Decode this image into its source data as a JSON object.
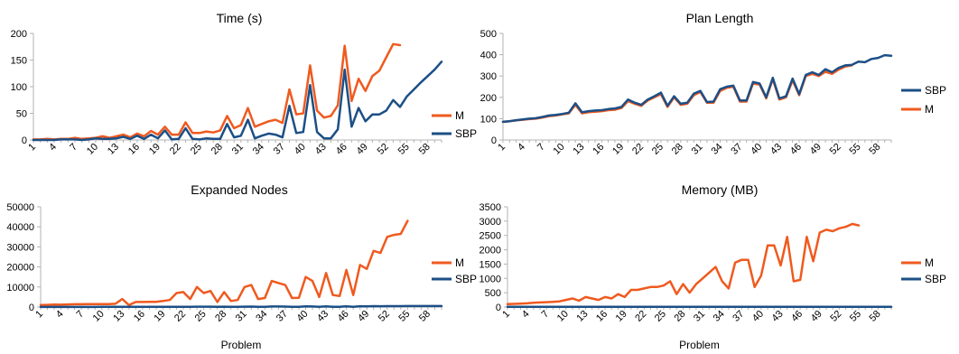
{
  "x_tick_labels": [
    "1",
    "4",
    "7",
    "10",
    "13",
    "16",
    "19",
    "22",
    "25",
    "28",
    "31",
    "34",
    "37",
    "40",
    "43",
    "46",
    "49",
    "52",
    "55",
    "58"
  ],
  "colors": {
    "M": "#ef5a1f",
    "SBP": "#1c4f86",
    "axis": "#b3b3b3"
  },
  "chart_data": [
    {
      "type": "line",
      "title": "Time (s)",
      "xlabel": "",
      "ylabel": "",
      "x": [
        1,
        2,
        3,
        4,
        5,
        6,
        7,
        8,
        9,
        10,
        11,
        12,
        13,
        14,
        15,
        16,
        17,
        18,
        19,
        20,
        21,
        22,
        23,
        24,
        25,
        26,
        27,
        28,
        29,
        30,
        31,
        32,
        33,
        34,
        35,
        36,
        37,
        38,
        39,
        40,
        41,
        42,
        43,
        44,
        45,
        46,
        47,
        48,
        49,
        50,
        51,
        52,
        53,
        54,
        55,
        56,
        57,
        58,
        59,
        60
      ],
      "ylim": [
        0,
        200
      ],
      "yticks": [
        0,
        50,
        100,
        150,
        200
      ],
      "legend": "right",
      "legend_order": [
        "M",
        "SBP"
      ],
      "series": [
        {
          "name": "M",
          "values": [
            1,
            1,
            2,
            1,
            2,
            2,
            4,
            2,
            3,
            4,
            7,
            4,
            7,
            10,
            5,
            12,
            7,
            17,
            10,
            25,
            10,
            10,
            33,
            13,
            13,
            16,
            14,
            18,
            45,
            22,
            28,
            60,
            25,
            30,
            35,
            38,
            32,
            95,
            48,
            50,
            140,
            55,
            42,
            45,
            65,
            177,
            73,
            115,
            92,
            120,
            130,
            155,
            180,
            178,
            null,
            null,
            null,
            null,
            null,
            null
          ]
        },
        {
          "name": "SBP",
          "values": [
            0,
            0,
            0,
            0,
            1,
            1,
            1,
            0,
            1,
            3,
            2,
            2,
            3,
            6,
            2,
            8,
            2,
            10,
            3,
            18,
            1,
            2,
            22,
            2,
            1,
            3,
            2,
            2,
            30,
            5,
            8,
            38,
            3,
            8,
            12,
            10,
            5,
            64,
            13,
            15,
            103,
            15,
            3,
            3,
            20,
            132,
            25,
            60,
            35,
            48,
            48,
            55,
            75,
            62,
            82,
            95,
            108,
            120,
            132,
            147
          ]
        }
      ]
    },
    {
      "type": "line",
      "title": "Plan Length",
      "xlabel": "",
      "ylabel": "",
      "x": [
        1,
        2,
        3,
        4,
        5,
        6,
        7,
        8,
        9,
        10,
        11,
        12,
        13,
        14,
        15,
        16,
        17,
        18,
        19,
        20,
        21,
        22,
        23,
        24,
        25,
        26,
        27,
        28,
        29,
        30,
        31,
        32,
        33,
        34,
        35,
        36,
        37,
        38,
        39,
        40,
        41,
        42,
        43,
        44,
        45,
        46,
        47,
        48,
        49,
        50,
        51,
        52,
        53,
        54,
        55,
        56,
        57,
        58,
        59,
        60
      ],
      "ylim": [
        0,
        500
      ],
      "yticks": [
        0,
        100,
        200,
        300,
        400,
        500
      ],
      "legend": "right",
      "legend_order": [
        "SBP",
        "M"
      ],
      "series": [
        {
          "name": "M",
          "values": [
            85,
            88,
            92,
            95,
            98,
            100,
            105,
            112,
            115,
            120,
            125,
            165,
            125,
            130,
            132,
            135,
            140,
            142,
            150,
            182,
            170,
            160,
            185,
            200,
            215,
            155,
            200,
            165,
            170,
            210,
            225,
            175,
            175,
            230,
            245,
            250,
            180,
            180,
            265,
            260,
            195,
            285,
            190,
            200,
            280,
            210,
            300,
            310,
            300,
            320,
            310,
            330,
            345,
            350,
            null,
            null,
            null,
            null,
            null,
            null
          ]
        },
        {
          "name": "SBP",
          "values": [
            85,
            88,
            93,
            96,
            100,
            102,
            108,
            115,
            118,
            122,
            128,
            172,
            130,
            135,
            138,
            140,
            145,
            148,
            155,
            190,
            175,
            165,
            190,
            205,
            222,
            160,
            205,
            170,
            175,
            218,
            230,
            178,
            180,
            238,
            250,
            255,
            185,
            185,
            272,
            265,
            200,
            292,
            195,
            205,
            288,
            215,
            305,
            318,
            305,
            332,
            318,
            338,
            350,
            352,
            368,
            365,
            380,
            385,
            398,
            395
          ]
        }
      ]
    },
    {
      "type": "line",
      "title": "Expanded Nodes",
      "xlabel": "Problem",
      "ylabel": "",
      "x": [
        1,
        2,
        3,
        4,
        5,
        6,
        7,
        8,
        9,
        10,
        11,
        12,
        13,
        14,
        15,
        16,
        17,
        18,
        19,
        20,
        21,
        22,
        23,
        24,
        25,
        26,
        27,
        28,
        29,
        30,
        31,
        32,
        33,
        34,
        35,
        36,
        37,
        38,
        39,
        40,
        41,
        42,
        43,
        44,
        45,
        46,
        47,
        48,
        49,
        50,
        51,
        52,
        53,
        54,
        55,
        56,
        57,
        58,
        59,
        60
      ],
      "ylim": [
        0,
        50000
      ],
      "yticks": [
        0,
        10000,
        20000,
        30000,
        40000,
        50000
      ],
      "legend": "right",
      "legend_order": [
        "M",
        "SBP"
      ],
      "series": [
        {
          "name": "M",
          "values": [
            1000,
            1100,
            1200,
            1150,
            1300,
            1400,
            1400,
            1450,
            1500,
            1500,
            1500,
            1600,
            4000,
            1000,
            2500,
            2500,
            2600,
            2600,
            3000,
            3500,
            7000,
            7500,
            4000,
            10000,
            7000,
            8000,
            2500,
            7500,
            3000,
            3500,
            10000,
            11000,
            4000,
            4500,
            13000,
            12000,
            11000,
            4500,
            4600,
            15000,
            13000,
            5000,
            17000,
            6000,
            5500,
            18500,
            6000,
            21000,
            19000,
            28000,
            27000,
            35000,
            36000,
            36500,
            43000,
            null,
            null,
            null,
            null,
            null
          ]
        },
        {
          "name": "SBP",
          "values": [
            30,
            30,
            40,
            40,
            50,
            50,
            60,
            60,
            60,
            70,
            70,
            80,
            90,
            80,
            80,
            90,
            100,
            100,
            100,
            110,
            150,
            150,
            120,
            200,
            180,
            180,
            100,
            180,
            120,
            130,
            200,
            220,
            120,
            130,
            260,
            250,
            240,
            130,
            130,
            300,
            260,
            150,
            320,
            150,
            150,
            360,
            150,
            400,
            380,
            440,
            420,
            450,
            460,
            460,
            480,
            480,
            490,
            500,
            500,
            500
          ]
        }
      ]
    },
    {
      "type": "line",
      "title": "Memory (MB)",
      "xlabel": "Problem",
      "ylabel": "",
      "x": [
        1,
        2,
        3,
        4,
        5,
        6,
        7,
        8,
        9,
        10,
        11,
        12,
        13,
        14,
        15,
        16,
        17,
        18,
        19,
        20,
        21,
        22,
        23,
        24,
        25,
        26,
        27,
        28,
        29,
        30,
        31,
        32,
        33,
        34,
        35,
        36,
        37,
        38,
        39,
        40,
        41,
        42,
        43,
        44,
        45,
        46,
        47,
        48,
        49,
        50,
        51,
        52,
        53,
        54,
        55,
        56,
        57,
        58,
        59,
        60
      ],
      "ylim": [
        0,
        3500
      ],
      "yticks": [
        0,
        500,
        1000,
        1500,
        2000,
        2500,
        3000,
        3500
      ],
      "legend": "right",
      "legend_order": [
        "M",
        "SBP"
      ],
      "series": [
        {
          "name": "M",
          "values": [
            100,
            110,
            120,
            130,
            150,
            160,
            170,
            180,
            200,
            250,
            300,
            220,
            350,
            300,
            250,
            350,
            300,
            450,
            350,
            600,
            600,
            650,
            700,
            700,
            750,
            900,
            450,
            800,
            500,
            800,
            1000,
            1200,
            1400,
            900,
            650,
            1550,
            1650,
            1650,
            700,
            1100,
            2150,
            2150,
            1450,
            2450,
            900,
            950,
            2450,
            1600,
            2600,
            2700,
            2650,
            2750,
            2800,
            2900,
            2850,
            null,
            null,
            null,
            null,
            null
          ]
        },
        {
          "name": "SBP",
          "values": [
            10,
            10,
            10,
            10,
            10,
            10,
            10,
            10,
            10,
            10,
            10,
            10,
            10,
            10,
            10,
            10,
            10,
            10,
            10,
            10,
            10,
            10,
            10,
            10,
            10,
            10,
            10,
            10,
            10,
            10,
            10,
            10,
            10,
            10,
            10,
            10,
            10,
            10,
            10,
            10,
            10,
            10,
            10,
            10,
            10,
            10,
            10,
            10,
            10,
            10,
            10,
            10,
            10,
            10,
            10,
            10,
            10,
            10,
            10,
            10
          ]
        }
      ]
    }
  ]
}
